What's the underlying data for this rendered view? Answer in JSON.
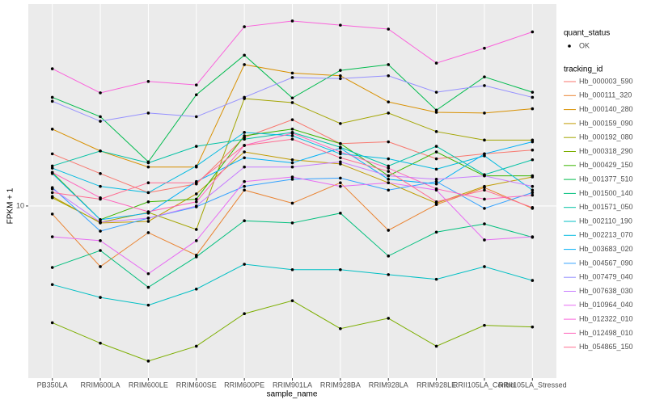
{
  "chart_data": {
    "type": "line",
    "x_label": "sample_name",
    "y_label": "FPKM + 1",
    "log_y": true,
    "grid": true,
    "ylim": [
      2.93,
      42.2
    ],
    "yticks": [
      10
    ],
    "categories": [
      "PB350LA",
      "RRIM600LA",
      "RRIM600LE",
      "RRIM600SE",
      "RRIM600PE",
      "RRIM901LA",
      "RRIM928BA",
      "RRIM928LA",
      "RRIM928LE",
      "RRII105LA_Control",
      "RRII105LA_Stressed"
    ],
    "point_legend_title": "quant_status",
    "point_legend": [
      {
        "name": "OK",
        "color": "#000000"
      }
    ],
    "legend_title": "tracking_id",
    "legend_position": "right",
    "series": [
      {
        "name": "Hb_000003_590",
        "color": "#F8766D",
        "values": [
          14.5,
          12.6,
          11.0,
          11.7,
          16.3,
          18.5,
          15.6,
          15.8,
          14.0,
          14.5,
          14.9
        ]
      },
      {
        "name": "Hb_000111_320",
        "color": "#EA8331",
        "values": [
          9.44,
          6.49,
          8.27,
          7.04,
          11.2,
          10.2,
          11.8,
          8.41,
          10.1,
          11.4,
          9.83
        ]
      },
      {
        "name": "Hb_000140_280",
        "color": "#D89000",
        "values": [
          17.3,
          14.8,
          13.2,
          13.2,
          27.4,
          25.8,
          25.3,
          21.0,
          19.5,
          19.4,
          20.0
        ]
      },
      {
        "name": "Hb_000159_090",
        "color": "#C09B00",
        "values": [
          10.7,
          8.86,
          8.96,
          10.9,
          14.7,
          13.9,
          13.5,
          11.8,
          10.2,
          11.5,
          12.3
        ]
      },
      {
        "name": "Hb_000192_080",
        "color": "#A3A500",
        "values": [
          10.6,
          8.9,
          9.55,
          8.46,
          21.5,
          20.9,
          18.0,
          19.4,
          17.0,
          16.0,
          16.0
        ]
      },
      {
        "name": "Hb_000318_290",
        "color": "#7CAE00",
        "values": [
          4.35,
          3.76,
          3.31,
          3.68,
          4.64,
          5.09,
          4.17,
          4.49,
          3.68,
          4.27,
          4.22
        ]
      },
      {
        "name": "Hb_000429_150",
        "color": "#39B600",
        "values": [
          12.7,
          9.07,
          10.3,
          10.5,
          16.5,
          17.3,
          15.6,
          12.4,
          14.7,
          12.4,
          12.4
        ]
      },
      {
        "name": "Hb_001377_510",
        "color": "#00BB4E",
        "values": [
          21.7,
          18.9,
          13.7,
          22.1,
          29.3,
          21.6,
          26.3,
          27.4,
          19.8,
          25.1,
          22.5
        ]
      },
      {
        "name": "Hb_001500_140",
        "color": "#00BF7D",
        "values": [
          6.45,
          7.28,
          5.6,
          6.96,
          9.0,
          8.86,
          9.5,
          7.0,
          8.3,
          8.8,
          8.0
        ]
      },
      {
        "name": "Hb_001571_050",
        "color": "#00C1A3",
        "values": [
          13.3,
          14.8,
          13.6,
          15.3,
          16.1,
          16.9,
          15.2,
          13.3,
          15.3,
          12.5,
          13.9
        ]
      },
      {
        "name": "Hb_002110_190",
        "color": "#00BFC4",
        "values": [
          5.71,
          5.21,
          4.93,
          5.53,
          6.6,
          6.35,
          6.35,
          6.13,
          5.93,
          6.49,
          5.88
        ]
      },
      {
        "name": "Hb_002213_070",
        "color": "#00BAE0",
        "values": [
          13.1,
          11.5,
          11.0,
          13.3,
          16.9,
          16.5,
          14.5,
          14.0,
          13.0,
          14.3,
          11.2
        ]
      },
      {
        "name": "Hb_003683_020",
        "color": "#00B0F6",
        "values": [
          12.6,
          9.07,
          9.5,
          11.9,
          14.1,
          13.6,
          15.1,
          12.1,
          11.7,
          14.5,
          15.8
        ]
      },
      {
        "name": "Hb_004567_090",
        "color": "#35A2FF",
        "values": [
          11.4,
          8.36,
          9.17,
          9.94,
          11.5,
          12.1,
          12.2,
          11.2,
          11.9,
          9.83,
          11.0
        ]
      },
      {
        "name": "Hb_007479_040",
        "color": "#9590FF",
        "values": [
          21.1,
          18.3,
          19.4,
          18.9,
          21.7,
          25.0,
          24.8,
          25.3,
          22.5,
          23.6,
          21.7
        ]
      },
      {
        "name": "Hb_007638_030",
        "color": "#C77CFF",
        "values": [
          11.3,
          8.91,
          9.17,
          10.0,
          13.2,
          13.2,
          13.7,
          12.4,
          12.1,
          12.4,
          11.5
        ]
      },
      {
        "name": "Hb_010964_040",
        "color": "#E76BF3",
        "values": [
          8.03,
          7.81,
          6.17,
          7.81,
          11.9,
          12.3,
          11.5,
          11.8,
          11.2,
          7.85,
          8.03
        ]
      },
      {
        "name": "Hb_012322_010",
        "color": "#FA62DB",
        "values": [
          26.6,
          22.4,
          24.3,
          23.7,
          35.9,
          37.4,
          36.3,
          35.3,
          27.7,
          30.8,
          34.6
        ]
      },
      {
        "name": "Hb_012498_010",
        "color": "#FF62BC",
        "values": [
          12.7,
          10.6,
          9.6,
          10.3,
          15.4,
          16.8,
          14.7,
          13.1,
          11.3,
          10.5,
          10.8
        ]
      },
      {
        "name": "Hb_054865_150",
        "color": "#FF6C91",
        "values": [
          11.0,
          10.5,
          11.8,
          11.8,
          15.4,
          16.1,
          14.1,
          12.8,
          10.3,
          11.2,
          9.89
        ]
      }
    ]
  }
}
